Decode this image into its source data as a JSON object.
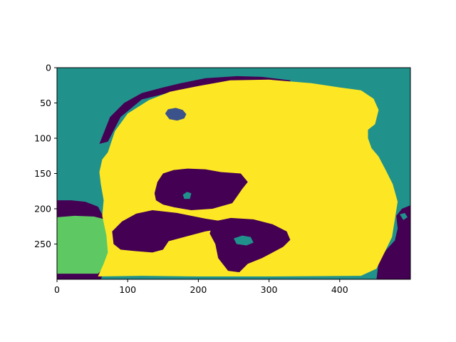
{
  "chart_data": {
    "type": "heatmap",
    "title": "",
    "xlabel": "",
    "ylabel": "",
    "xlim": [
      0,
      500
    ],
    "ylim": [
      300,
      0
    ],
    "x_ticks": [
      0,
      100,
      200,
      300,
      400
    ],
    "y_ticks": [
      0,
      50,
      100,
      150,
      200,
      250
    ],
    "x_tick_labels": [
      "0",
      "100",
      "200",
      "300",
      "400"
    ],
    "y_tick_labels": [
      "0",
      "50",
      "100",
      "150",
      "200",
      "250"
    ],
    "colormap": "viridis",
    "grid": false,
    "legend": "none",
    "palette": {
      "purple": "#440154",
      "blue": "#3b528b",
      "teal": "#21918c",
      "green": "#5ec962",
      "yellow": "#fde725"
    },
    "regions": [
      {
        "name": "background-teal",
        "color": "teal",
        "kind": "rect",
        "x0": 0,
        "y0": 0,
        "x1": 500,
        "y1": 300
      },
      {
        "name": "left-purple-band",
        "color": "purple",
        "points": [
          [
            0,
            188
          ],
          [
            20,
            188
          ],
          [
            40,
            190
          ],
          [
            58,
            197
          ],
          [
            65,
            210
          ],
          [
            66,
            225
          ],
          [
            72,
            240
          ],
          [
            74,
            260
          ],
          [
            72,
            278
          ],
          [
            62,
            300
          ],
          [
            0,
            300
          ]
        ]
      },
      {
        "name": "green-corner",
        "color": "green",
        "points": [
          [
            0,
            212
          ],
          [
            25,
            210
          ],
          [
            52,
            211
          ],
          [
            68,
            215
          ],
          [
            70,
            232
          ],
          [
            76,
            255
          ],
          [
            74,
            272
          ],
          [
            66,
            284
          ],
          [
            58,
            292
          ],
          [
            0,
            292
          ]
        ]
      },
      {
        "name": "right-purple-band",
        "color": "purple",
        "points": [
          [
            500,
            195
          ],
          [
            488,
            200
          ],
          [
            480,
            210
          ],
          [
            482,
            228
          ],
          [
            478,
            245
          ],
          [
            466,
            258
          ],
          [
            455,
            275
          ],
          [
            452,
            300
          ],
          [
            500,
            300
          ]
        ]
      },
      {
        "name": "top-purple-rim",
        "color": "purple",
        "points": [
          [
            60,
            108
          ],
          [
            75,
            70
          ],
          [
            95,
            50
          ],
          [
            120,
            36
          ],
          [
            150,
            28
          ],
          [
            175,
            22
          ],
          [
            210,
            15
          ],
          [
            255,
            12
          ],
          [
            290,
            13
          ],
          [
            330,
            18
          ],
          [
            330,
            26
          ],
          [
            180,
            30
          ],
          [
            120,
            45
          ],
          [
            90,
            70
          ],
          [
            72,
            105
          ]
        ]
      },
      {
        "name": "yellow-main-region",
        "color": "yellow",
        "points": [
          [
            72,
            120
          ],
          [
            82,
            90
          ],
          [
            100,
            65
          ],
          [
            130,
            46
          ],
          [
            160,
            34
          ],
          [
            200,
            26
          ],
          [
            245,
            18
          ],
          [
            300,
            17
          ],
          [
            360,
            22
          ],
          [
            400,
            28
          ],
          [
            430,
            32
          ],
          [
            448,
            44
          ],
          [
            455,
            60
          ],
          [
            450,
            80
          ],
          [
            440,
            88
          ],
          [
            440,
            100
          ],
          [
            445,
            114
          ],
          [
            455,
            126
          ],
          [
            465,
            145
          ],
          [
            475,
            165
          ],
          [
            482,
            190
          ],
          [
            478,
            215
          ],
          [
            474,
            240
          ],
          [
            462,
            265
          ],
          [
            452,
            285
          ],
          [
            430,
            295
          ],
          [
            300,
            296
          ],
          [
            200,
            296
          ],
          [
            120,
            295
          ],
          [
            58,
            296
          ],
          [
            66,
            278
          ],
          [
            72,
            262
          ],
          [
            70,
            238
          ],
          [
            64,
            210
          ],
          [
            66,
            188
          ],
          [
            62,
            165
          ],
          [
            60,
            148
          ],
          [
            64,
            130
          ]
        ]
      },
      {
        "name": "small-blue-blob",
        "color": "blue",
        "points": [
          [
            153,
            65
          ],
          [
            157,
            59
          ],
          [
            168,
            57
          ],
          [
            178,
            60
          ],
          [
            183,
            66
          ],
          [
            180,
            72
          ],
          [
            170,
            75
          ],
          [
            159,
            73
          ]
        ]
      },
      {
        "name": "central-purple-blob",
        "color": "purple",
        "points": [
          [
            138,
            178
          ],
          [
            142,
            162
          ],
          [
            150,
            150
          ],
          [
            165,
            145
          ],
          [
            185,
            143
          ],
          [
            210,
            144
          ],
          [
            232,
            148
          ],
          [
            260,
            150
          ],
          [
            270,
            162
          ],
          [
            262,
            172
          ],
          [
            255,
            182
          ],
          [
            248,
            192
          ],
          [
            220,
            200
          ],
          [
            190,
            202
          ],
          [
            166,
            198
          ],
          [
            150,
            194
          ],
          [
            140,
            188
          ]
        ]
      },
      {
        "name": "lower-left-purple",
        "color": "purple",
        "points": [
          [
            78,
            232
          ],
          [
            92,
            218
          ],
          [
            112,
            207
          ],
          [
            135,
            202
          ],
          [
            170,
            206
          ],
          [
            210,
            214
          ],
          [
            235,
            218
          ],
          [
            238,
            228
          ],
          [
            210,
            232
          ],
          [
            180,
            240
          ],
          [
            158,
            246
          ],
          [
            150,
            258
          ],
          [
            135,
            262
          ],
          [
            110,
            260
          ],
          [
            90,
            258
          ],
          [
            80,
            250
          ]
        ]
      },
      {
        "name": "lower-center-purple",
        "color": "purple",
        "points": [
          [
            222,
            218
          ],
          [
            246,
            213
          ],
          [
            278,
            215
          ],
          [
            305,
            222
          ],
          [
            325,
            232
          ],
          [
            330,
            244
          ],
          [
            320,
            254
          ],
          [
            305,
            262
          ],
          [
            290,
            270
          ],
          [
            270,
            278
          ],
          [
            258,
            290
          ],
          [
            242,
            288
          ],
          [
            228,
            270
          ],
          [
            224,
            250
          ],
          [
            216,
            235
          ]
        ]
      },
      {
        "name": "teal-inset-upper",
        "color": "teal",
        "points": [
          [
            178,
            180
          ],
          [
            184,
            176
          ],
          [
            190,
            178
          ],
          [
            188,
            186
          ],
          [
            180,
            186
          ]
        ]
      },
      {
        "name": "teal-inset-lower",
        "color": "teal",
        "points": [
          [
            250,
            242
          ],
          [
            262,
            238
          ],
          [
            274,
            240
          ],
          [
            278,
            248
          ],
          [
            268,
            252
          ],
          [
            254,
            250
          ]
        ]
      },
      {
        "name": "teal-inset-right",
        "color": "teal",
        "points": [
          [
            485,
            208
          ],
          [
            492,
            206
          ],
          [
            496,
            212
          ],
          [
            490,
            216
          ]
        ]
      }
    ]
  }
}
